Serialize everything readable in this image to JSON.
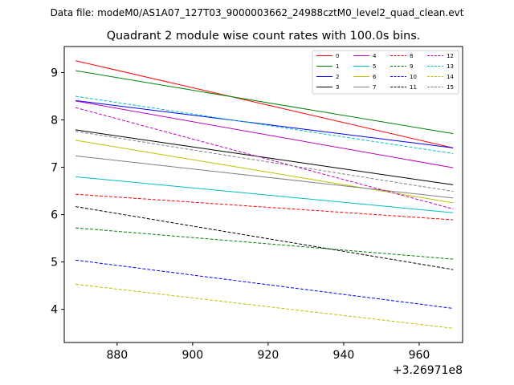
{
  "figure": {
    "suptitle": "Data file: modeM0/AS1A07_127T03_9000003662_24988cztM0_level2_quad_clean.evt"
  },
  "chart_data": {
    "type": "line",
    "title": "Quadrant 2 module wise count rates with 100.0s bins.",
    "xlabel": "",
    "ylabel": "",
    "x_offset_label": "+3.26971e8",
    "xlim": [
      866,
      971.5
    ],
    "ylim": [
      3.3,
      9.55
    ],
    "xticks": [
      880,
      900,
      920,
      940,
      960
    ],
    "yticks": [
      4,
      5,
      6,
      7,
      8,
      9
    ],
    "legend_position": "top-right",
    "x": [
      869,
      969
    ],
    "series": [
      {
        "name": "0",
        "color": "#ff0000",
        "dashed": false,
        "values": [
          9.25,
          7.41
        ]
      },
      {
        "name": "1",
        "color": "#008000",
        "dashed": false,
        "values": [
          9.04,
          7.71
        ]
      },
      {
        "name": "2",
        "color": "#0000ff",
        "dashed": false,
        "values": [
          8.41,
          7.41
        ]
      },
      {
        "name": "3",
        "color": "#000000",
        "dashed": false,
        "values": [
          7.79,
          6.63
        ]
      },
      {
        "name": "4",
        "color": "#bf00bf",
        "dashed": false,
        "values": [
          8.4,
          6.99
        ]
      },
      {
        "name": "5",
        "color": "#00bfbf",
        "dashed": false,
        "values": [
          6.8,
          6.04
        ]
      },
      {
        "name": "6",
        "color": "#bfbf00",
        "dashed": false,
        "values": [
          7.57,
          6.25
        ]
      },
      {
        "name": "7",
        "color": "#808080",
        "dashed": false,
        "values": [
          7.24,
          6.35
        ]
      },
      {
        "name": "8",
        "color": "#ff0000",
        "dashed": true,
        "values": [
          6.43,
          5.89
        ]
      },
      {
        "name": "9",
        "color": "#008000",
        "dashed": true,
        "values": [
          5.72,
          5.06
        ]
      },
      {
        "name": "10",
        "color": "#0000ff",
        "dashed": true,
        "values": [
          5.04,
          4.02
        ]
      },
      {
        "name": "11",
        "color": "#000000",
        "dashed": true,
        "values": [
          6.17,
          4.84
        ]
      },
      {
        "name": "12",
        "color": "#bf00bf",
        "dashed": true,
        "values": [
          8.26,
          6.12
        ]
      },
      {
        "name": "13",
        "color": "#00bfbf",
        "dashed": true,
        "values": [
          8.5,
          7.29
        ]
      },
      {
        "name": "14",
        "color": "#bfbf00",
        "dashed": true,
        "values": [
          4.53,
          3.6
        ]
      },
      {
        "name": "15",
        "color": "#808080",
        "dashed": true,
        "values": [
          7.76,
          6.49
        ]
      }
    ]
  }
}
